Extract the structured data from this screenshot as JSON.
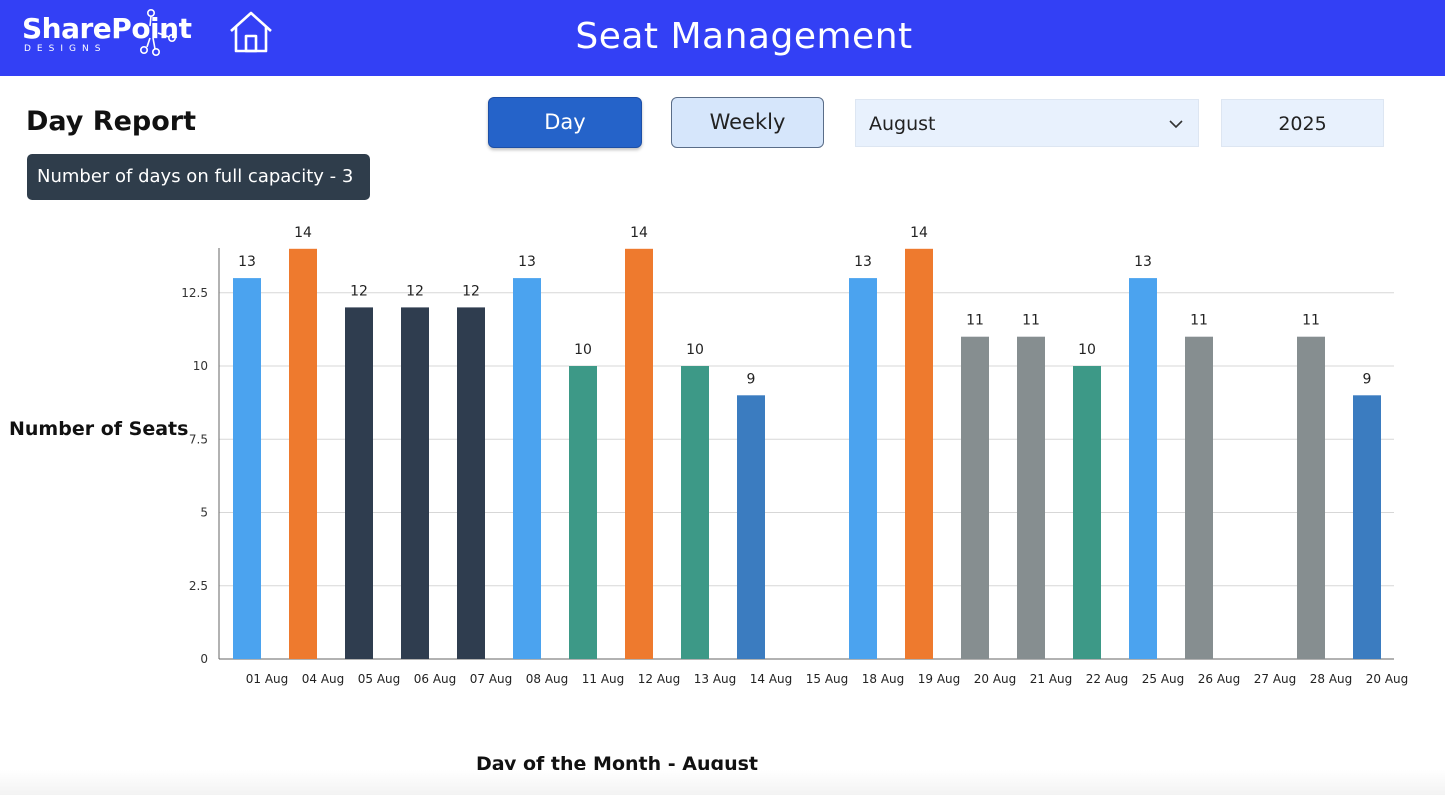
{
  "header": {
    "logo_main": "SharePoint",
    "logo_sub": "DESIGNS",
    "title": "Seat Management",
    "home_icon": "home-icon",
    "color": "#3340f5"
  },
  "controls": {
    "report_title": "Day Report",
    "capacity_badge": "Number of days on full capacity - 3",
    "day_button": "Day",
    "weekly_button": "Weekly",
    "month_value": "August",
    "year_value": "2025"
  },
  "chart_data": {
    "type": "bar",
    "categories": [
      "01 Aug",
      "04 Aug",
      "05 Aug",
      "06 Aug",
      "07 Aug",
      "08 Aug",
      "11 Aug",
      "12 Aug",
      "13 Aug",
      "14 Aug",
      "15 Aug",
      "18 Aug",
      "19 Aug",
      "20 Aug",
      "21 Aug",
      "22 Aug",
      "25 Aug",
      "26 Aug",
      "27 Aug",
      "28 Aug",
      "20 Aug"
    ],
    "values": [
      13,
      14,
      12,
      12,
      12,
      13,
      10,
      14,
      10,
      9,
      null,
      13,
      14,
      11,
      11,
      10,
      13,
      11,
      null,
      11,
      9
    ],
    "colors": [
      "#4ba3ef",
      "#ee7a2e",
      "#2f3d4f",
      "#2f3d4f",
      "#2f3d4f",
      "#4ba3ef",
      "#3d9987",
      "#ee7a2e",
      "#3d9987",
      "#3b7cc0",
      null,
      "#4ba3ef",
      "#ee7a2e",
      "#868e90",
      "#868e90",
      "#3d9987",
      "#4ba3ef",
      "#868e90",
      null,
      "#868e90",
      "#3b7cc0"
    ],
    "yticks": [
      0,
      2.5,
      5,
      7.5,
      10,
      12.5
    ],
    "ytick_labels": [
      "0",
      "2.5",
      "5",
      "7.5",
      "10",
      "12.5"
    ],
    "ylim": [
      0,
      14
    ],
    "xlabel": "Day of the Month - August",
    "ylabel": "Number of Seats",
    "grid": true
  }
}
